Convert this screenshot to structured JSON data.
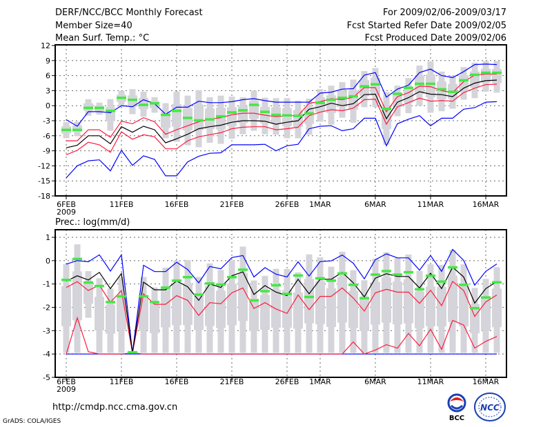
{
  "header": {
    "title": "DERF/NCC/BCC Monthly Forecast",
    "member_size": "Member Size=40",
    "variable": "Mean Surf. Temp.: °C",
    "period": "For 2009/02/06-2009/03/17",
    "refer_date": "Fcst Started Refer Date 2009/02/05",
    "produced_date": "Fcst Produced Date 2009/02/06"
  },
  "footer": {
    "url": "http://cmdp.ncc.cma.gov.cn",
    "grads": "GrADS: COLA/IGES",
    "logo_bcc": "BCC",
    "logo_ncc": "NCC"
  },
  "colors": {
    "max_min": "#0000ff",
    "spread": "#ff1a3c",
    "mean": "#000000",
    "green": "#44e844",
    "box": "#d4d4da"
  },
  "chart_data": [
    {
      "type": "line",
      "title": "Mean Surf. Temp.: °C",
      "ylim": [
        -18,
        12
      ],
      "yticks": [
        12,
        9,
        6,
        3,
        0,
        -3,
        -6,
        -9,
        -12,
        -15,
        -18
      ],
      "ytick_labels": [
        "12",
        "9",
        "6",
        "3",
        "0",
        "-3",
        "-6",
        "-9",
        "-12",
        "-15",
        "-18"
      ],
      "xtick_days": [
        0,
        5,
        10,
        15,
        20,
        23,
        28,
        33,
        38
      ],
      "xtick_labels": [
        "6FEB",
        "11FEB",
        "16FEB",
        "21FEB",
        "26FEB",
        "1MAR",
        "6MAR",
        "11MAR",
        "16MAR"
      ],
      "xtick_year": "2009",
      "days": 40,
      "grid": true,
      "box_hi": [
        -3.3,
        -3.2,
        1.3,
        0.6,
        1.3,
        3.0,
        3.3,
        2.8,
        1.7,
        0.5,
        2.8,
        2.0,
        3.1,
        1.7,
        2.0,
        1.8,
        1.7,
        3.0,
        1.6,
        1.5,
        1.5,
        1.0,
        1.4,
        3.3,
        4.0,
        4.7,
        5.2,
        6.9,
        7.5,
        2.7,
        4.0,
        5.5,
        8.0,
        8.8,
        6.8,
        6.0,
        7.7,
        8.6,
        8.9,
        8.9
      ],
      "box_lo": [
        -6.5,
        -6.1,
        -2.0,
        -1.8,
        -5.0,
        -0.2,
        -1.7,
        -2.2,
        -1.4,
        -6.5,
        -7.2,
        -7.9,
        -8.3,
        -7.4,
        -7.6,
        -6.6,
        -5.7,
        -5.0,
        -5.7,
        -5.8,
        -6.5,
        -6.5,
        -5.8,
        -3.2,
        -3.8,
        -2.4,
        -3.4,
        -0.3,
        -0.3,
        -7.8,
        -2.1,
        -1.5,
        0.0,
        -1.4,
        -1.1,
        -0.6,
        1.2,
        1.5,
        2.8,
        2.6
      ],
      "green": [
        -4.8,
        -4.8,
        -0.4,
        -0.4,
        -1.0,
        1.6,
        1.2,
        0.2,
        0.5,
        -1.8,
        -1.0,
        -2.4,
        -2.9,
        -2.7,
        -2.1,
        -1.3,
        -0.9,
        0.2,
        -1.2,
        -1.8,
        -1.9,
        -2.0,
        -1.5,
        0.6,
        1.2,
        1.6,
        1.9,
        3.9,
        4.3,
        -0.6,
        2.4,
        3.6,
        4.4,
        4.4,
        3.3,
        2.8,
        5.1,
        6.2,
        6.6,
        6.6
      ],
      "series": [
        {
          "name": "max",
          "color": "#0000ff",
          "values": [
            -2.8,
            -4.1,
            -1.2,
            -1.2,
            -1.4,
            0.0,
            -0.2,
            1.2,
            0.4,
            -1.7,
            -0.3,
            -0.3,
            0.9,
            0.6,
            0.6,
            0.8,
            1.2,
            1.4,
            1.0,
            0.7,
            0.7,
            0.7,
            0.7,
            2.5,
            2.7,
            3.3,
            3.4,
            6.1,
            6.6,
            1.7,
            3.3,
            4.1,
            6.6,
            7.3,
            6.0,
            5.6,
            6.8,
            8.2,
            8.3,
            8.2
          ]
        },
        {
          "name": "upper",
          "color": "#ff1a3c",
          "values": [
            -7.0,
            -7.0,
            -4.8,
            -4.8,
            -6.3,
            -3.1,
            -3.6,
            -2.4,
            -3.2,
            -5.7,
            -4.8,
            -4.0,
            -3.2,
            -2.7,
            -2.4,
            -1.8,
            -1.5,
            -1.5,
            -1.9,
            -2.2,
            -2.0,
            -2.0,
            0.5,
            0.8,
            1.4,
            1.2,
            1.7,
            3.6,
            3.6,
            -1.2,
            1.8,
            2.6,
            3.9,
            3.8,
            3.0,
            2.6,
            4.8,
            6.1,
            6.3,
            6.3
          ]
        },
        {
          "name": "mean",
          "color": "#000000",
          "values": [
            -8.4,
            -7.9,
            -6.0,
            -6.0,
            -7.6,
            -4.2,
            -5.3,
            -4.1,
            -4.8,
            -7.4,
            -6.6,
            -5.7,
            -4.6,
            -4.2,
            -3.9,
            -3.3,
            -3.0,
            -3.0,
            -3.1,
            -3.7,
            -3.3,
            -3.0,
            -0.7,
            -0.2,
            0.5,
            0.0,
            0.4,
            2.2,
            2.3,
            -2.6,
            0.7,
            1.6,
            2.8,
            2.3,
            2.2,
            1.8,
            3.5,
            4.5,
            5.0,
            5.1
          ]
        },
        {
          "name": "lower",
          "color": "#ff1a3c",
          "values": [
            -9.8,
            -8.9,
            -7.3,
            -7.8,
            -9.3,
            -5.2,
            -6.7,
            -5.8,
            -6.2,
            -8.6,
            -8.6,
            -7.0,
            -6.2,
            -5.8,
            -5.4,
            -4.6,
            -4.3,
            -4.2,
            -4.2,
            -4.8,
            -4.6,
            -4.3,
            -2.0,
            -1.3,
            -0.8,
            -1.0,
            -0.5,
            1.2,
            1.3,
            -3.7,
            -0.2,
            0.6,
            1.5,
            0.9,
            1.0,
            0.9,
            2.6,
            3.5,
            4.2,
            4.3
          ]
        },
        {
          "name": "min",
          "color": "#0000ff",
          "values": [
            -14.4,
            -12.0,
            -11.0,
            -10.8,
            -13.0,
            -8.9,
            -11.9,
            -10.0,
            -10.7,
            -14.0,
            -14.0,
            -11.2,
            -10.1,
            -9.5,
            -9.4,
            -7.8,
            -7.8,
            -7.8,
            -7.7,
            -9.0,
            -8.0,
            -7.7,
            -4.6,
            -4.1,
            -4.0,
            -5.0,
            -4.6,
            -2.5,
            -2.5,
            -8.0,
            -3.6,
            -2.7,
            -2.0,
            -4.0,
            -2.5,
            -2.5,
            -0.7,
            -0.4,
            0.7,
            0.8
          ]
        }
      ]
    },
    {
      "type": "line",
      "title": "Prec.: log(mm/d)",
      "ylim": [
        -5,
        1.3
      ],
      "yticks": [
        1,
        0,
        -1,
        -2,
        -3,
        -4,
        -5
      ],
      "ytick_labels": [
        "1",
        "0",
        "-1",
        "-2",
        "-3",
        "-4",
        "-5"
      ],
      "xtick_days": [
        0,
        5,
        10,
        15,
        20,
        23,
        28,
        33,
        38
      ],
      "xtick_labels": [
        "6FEB",
        "11FEB",
        "16FEB",
        "21FEB",
        "26FEB",
        "1MAR",
        "6MAR",
        "11MAR",
        "16MAR"
      ],
      "xtick_year": "2009",
      "days": 40,
      "grid": true,
      "box_hi": [
        -0.15,
        0.7,
        -0.45,
        -0.75,
        -1.2,
        -0.7,
        -3.9,
        -0.7,
        -1.15,
        -0.3,
        0.0,
        0.03,
        -0.7,
        -0.12,
        -0.4,
        0.0,
        0.6,
        -0.85,
        -0.65,
        -0.35,
        -0.36,
        -0.5,
        0.27,
        0.14,
        -0.26,
        0.38,
        -0.41,
        -0.84,
        0.09,
        0.36,
        0.12,
        0.26,
        -0.44,
        -0.16,
        -0.18,
        0.46,
        -0.16,
        -1.17,
        -0.78,
        -0.28
      ],
      "box_lo": [
        -3.95,
        -3.95,
        -2.45,
        -3.95,
        -3.95,
        -3.95,
        -3.95,
        -3.95,
        -3.95,
        -3.95,
        -3.95,
        -3.95,
        -3.95,
        -3.95,
        -3.95,
        -3.95,
        -3.95,
        -3.95,
        -3.95,
        -3.95,
        -3.95,
        -3.95,
        -3.95,
        -3.95,
        -3.95,
        -3.95,
        -3.95,
        -3.95,
        -3.95,
        -3.95,
        -3.95,
        -3.95,
        -3.95,
        -3.95,
        -3.95,
        -3.95,
        -3.95,
        -3.95,
        -3.95,
        -3.95
      ],
      "green": [
        -0.82,
        0.08,
        -0.93,
        -1.08,
        -1.77,
        -1.52,
        -3.92,
        -1.52,
        -1.77,
        -1.15,
        -0.85,
        -0.7,
        -1.45,
        -0.97,
        -1.02,
        -0.7,
        -0.38,
        -1.7,
        -1.3,
        -1.05,
        -1.42,
        -0.63,
        -1.55,
        -0.75,
        -0.85,
        -0.54,
        -1.03,
        -1.6,
        -0.59,
        -0.44,
        -0.59,
        -0.49,
        -1.22,
        -0.64,
        -0.89,
        -0.28,
        -1.03,
        -2.03,
        -1.57,
        -0.92
      ],
      "series": [
        {
          "name": "max",
          "color": "#0000ff",
          "values": [
            -0.15,
            0.0,
            -0.05,
            0.25,
            -0.45,
            0.25,
            -3.95,
            -0.2,
            -0.47,
            -0.47,
            -0.07,
            -0.38,
            -0.95,
            -0.25,
            -0.35,
            0.13,
            0.22,
            -0.7,
            -0.3,
            -0.58,
            -0.7,
            -0.05,
            -0.66,
            -0.04,
            -0.01,
            0.24,
            -0.11,
            -0.78,
            0.04,
            0.29,
            0.12,
            0.12,
            -0.41,
            0.22,
            -0.46,
            0.48,
            0.01,
            -1.05,
            -0.46,
            -0.14
          ]
        },
        {
          "name": "upper",
          "color": "#ff1a3c",
          "values": [
            -1.15,
            -0.9,
            -1.28,
            -1.05,
            -1.78,
            -1.28,
            -3.95,
            -1.42,
            -1.87,
            -1.87,
            -1.5,
            -1.7,
            -2.35,
            -1.8,
            -1.85,
            -1.38,
            -1.17,
            -2.05,
            -1.8,
            -2.07,
            -2.26,
            -1.47,
            -2.1,
            -1.53,
            -1.53,
            -1.17,
            -1.6,
            -2.16,
            -1.38,
            -1.23,
            -1.35,
            -1.35,
            -1.83,
            -1.27,
            -1.93,
            -0.89,
            -1.28,
            -2.39,
            -1.77,
            -1.47
          ]
        },
        {
          "name": "mean",
          "color": "#000000",
          "values": [
            -0.88,
            -0.65,
            -0.83,
            -0.5,
            -1.2,
            -0.55,
            -3.95,
            -0.92,
            -1.25,
            -1.25,
            -0.87,
            -1.12,
            -1.7,
            -1.0,
            -1.15,
            -0.65,
            -0.48,
            -1.45,
            -1.07,
            -1.35,
            -1.5,
            -0.8,
            -1.42,
            -0.8,
            -0.8,
            -0.5,
            -0.95,
            -1.55,
            -0.75,
            -0.56,
            -0.68,
            -0.68,
            -1.17,
            -0.54,
            -1.2,
            -0.28,
            -0.7,
            -1.82,
            -1.2,
            -0.9
          ]
        },
        {
          "name": "min",
          "color": "#0000ff",
          "values": [
            -4,
            -4,
            -4,
            -4,
            -4,
            -4,
            -4,
            -4,
            -4,
            -4,
            -4,
            -4,
            -4,
            -4,
            -4,
            -4,
            -4,
            -4,
            -4,
            -4,
            -4,
            -4,
            -4,
            -4,
            -4,
            -4,
            -4,
            -4,
            -4,
            -4,
            -4,
            -4,
            -4,
            -4,
            -4,
            -4,
            -4,
            -4,
            -4,
            -4
          ]
        },
        {
          "name": "lower",
          "color": "#ff1a3c",
          "values": [
            -4.0,
            -2.45,
            -3.9,
            -4.0,
            -4.0,
            -4.0,
            -3.95,
            -4.0,
            -4.0,
            -4.0,
            -4.0,
            -4.0,
            -4.0,
            -4.0,
            -4.0,
            -4.0,
            -4.0,
            -4.0,
            -4.0,
            -4.0,
            -4.0,
            -4.0,
            -4.0,
            -4.0,
            -4.0,
            -4.0,
            -3.48,
            -4.0,
            -3.83,
            -3.6,
            -3.75,
            -3.12,
            -3.65,
            -2.94,
            -3.8,
            -2.56,
            -2.76,
            -3.75,
            -3.46,
            -3.25
          ]
        }
      ]
    }
  ]
}
